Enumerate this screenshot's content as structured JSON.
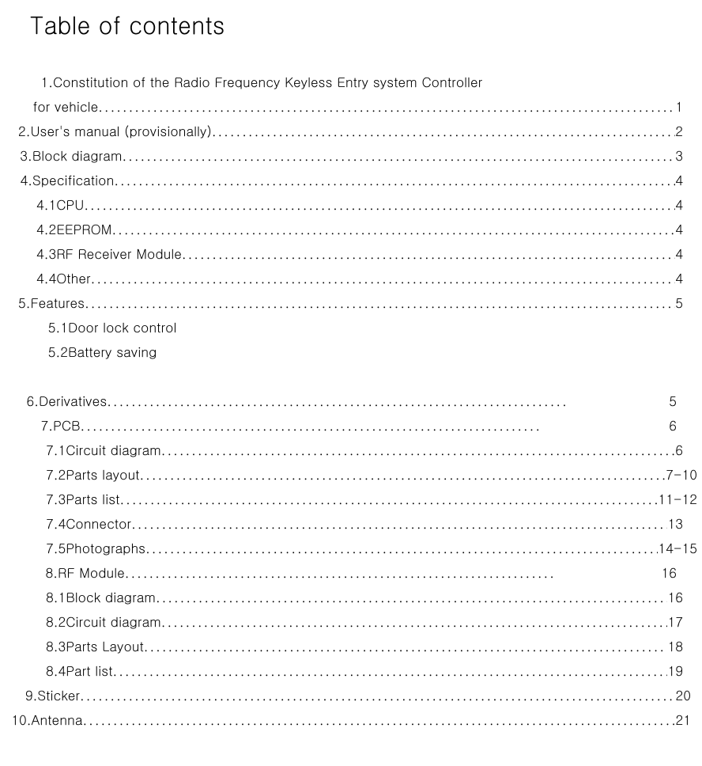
{
  "title": "Table of contents",
  "rows": [
    {
      "type": "line",
      "indent": "ind-top",
      "numWidth": 44,
      "num": "1.",
      "label": "Constitution of the Radio Frequency Keyless Entry system Controller",
      "dots": false,
      "page": "",
      "rightPad": 24
    },
    {
      "type": "line",
      "indent": "ind-top",
      "numWidth": 44,
      "num": "",
      "label": "for vehicle ",
      "dots": true,
      "page": "1",
      "rightPad": 24
    },
    {
      "type": "line",
      "indent": "ind-top",
      "numWidth": 44,
      "num": "2.",
      "label": "User's manual (provisionally)   ",
      "dots": true,
      "page": "2",
      "rightPad": 24
    },
    {
      "type": "line",
      "indent": "ind-top",
      "numWidth": 44,
      "num": "3.",
      "label": "Block diagram ",
      "dots": true,
      "page": "3",
      "rightPad": 24
    },
    {
      "type": "line",
      "indent": "ind-top",
      "numWidth": 44,
      "num": "4.",
      "label": "Specification ",
      "dots": true,
      "page": "4",
      "rightPad": 24
    },
    {
      "type": "line",
      "indent": "ind-sub",
      "numWidth": 40,
      "num": "4.1",
      "label": "CPU ",
      "dots": true,
      "page": "4",
      "rightPad": 24
    },
    {
      "type": "line",
      "indent": "ind-sub",
      "numWidth": 40,
      "num": "4.2",
      "label": "EEPROM ",
      "dots": true,
      "page": "4",
      "rightPad": 24
    },
    {
      "type": "line",
      "indent": "ind-sub",
      "numWidth": 40,
      "num": "4.3",
      "label": "RF Receiver Module ",
      "dots": true,
      "page": "4",
      "rightPad": 24
    },
    {
      "type": "line",
      "indent": "ind-sub",
      "numWidth": 40,
      "num": "4.4",
      "label": "Other ",
      "dots": true,
      "page": " 4",
      "rightPad": 24
    },
    {
      "type": "line",
      "indent": "ind-top",
      "numWidth": 36,
      "num": "5.",
      "label": "Features ",
      "dots": true,
      "page": "5",
      "rightPad": 24
    },
    {
      "type": "line",
      "indent": "ind-sub",
      "numWidth": 40,
      "num": "5.1",
      "label": "Door lock control",
      "dots": false,
      "page": "",
      "rightPad": 24
    },
    {
      "type": "line",
      "indent": "ind-sub",
      "numWidth": 40,
      "num": "5.2",
      "label": "Battery saving",
      "dots": false,
      "page": "",
      "rightPad": 24
    },
    {
      "type": "spacer"
    },
    {
      "type": "short",
      "indent": "ind-top",
      "numWidth": 26,
      "num": "6.",
      "label": "Derivatives ",
      "dotsWidth": 582,
      "page": "5",
      "rightPad": 32
    },
    {
      "type": "short",
      "indent": "ind-top",
      "numWidth": 44,
      "num": "7.",
      "label": "PCB ",
      "dotsWidth": 584,
      "page": "6",
      "rightPad": 32
    },
    {
      "type": "line",
      "indent": "ind-sub2",
      "numWidth": 44,
      "num": "7.1",
      "label": "Circuit diagram ",
      "dots": true,
      "page": "6",
      "rightPad": 24
    },
    {
      "type": "line",
      "indent": "ind-sub2",
      "numWidth": 44,
      "num": "7.2",
      "label": "Parts layout   ",
      "dots": true,
      "page": " 7-10",
      "rightPad": 6
    },
    {
      "type": "line",
      "indent": "ind-sub2",
      "numWidth": 44,
      "num": "7.3",
      "label": "Parts list ",
      "dots": true,
      "page": " 11-12",
      "rightPad": 6
    },
    {
      "type": "line",
      "indent": "ind-sub2",
      "numWidth": 44,
      "num": "7.4",
      "label": "Connector ",
      "dots": true,
      "page": "13",
      "rightPad": 24
    },
    {
      "type": "line",
      "indent": "ind-sub2",
      "numWidth": 44,
      "num": "7.5",
      "label": "Photographs ",
      "dots": true,
      "page": "14-15",
      "rightPad": 6
    },
    {
      "type": "short",
      "indent": "ind-top",
      "numWidth": 50,
      "num": "8.",
      "label": "RF Module ",
      "dotsWidth": 544,
      "page": "16",
      "rightPad": 32
    },
    {
      "type": "line",
      "indent": "ind-sub2",
      "numWidth": 44,
      "num": "8.1",
      "label": "Block diagram ",
      "dots": true,
      "page": "16",
      "rightPad": 24
    },
    {
      "type": "line",
      "indent": "ind-sub2",
      "numWidth": 44,
      "num": "8.2",
      "label": "Circuit diagram ",
      "dots": true,
      "page": "17",
      "rightPad": 24
    },
    {
      "type": "line",
      "indent": "ind-sub2",
      "numWidth": 44,
      "num": "8.3",
      "label": "Parts Layout ",
      "dots": true,
      "page": "18",
      "rightPad": 24
    },
    {
      "type": "line",
      "indent": "ind-sub2",
      "numWidth": 44,
      "num": "8.4",
      "label": "Part list ",
      "dots": true,
      "page": "19",
      "rightPad": 24
    },
    {
      "type": "line",
      "indent": "ind-top",
      "numWidth": 56,
      "num": "9.",
      "label": "Sticker    ",
      "dots": true,
      "page": " 20",
      "rightPad": 14
    },
    {
      "type": "line",
      "indent": "",
      "numWidth": 68,
      "num": "10.",
      "label": "Antenna ",
      "dots": true,
      "page": " 21",
      "rightPad": 14
    }
  ]
}
